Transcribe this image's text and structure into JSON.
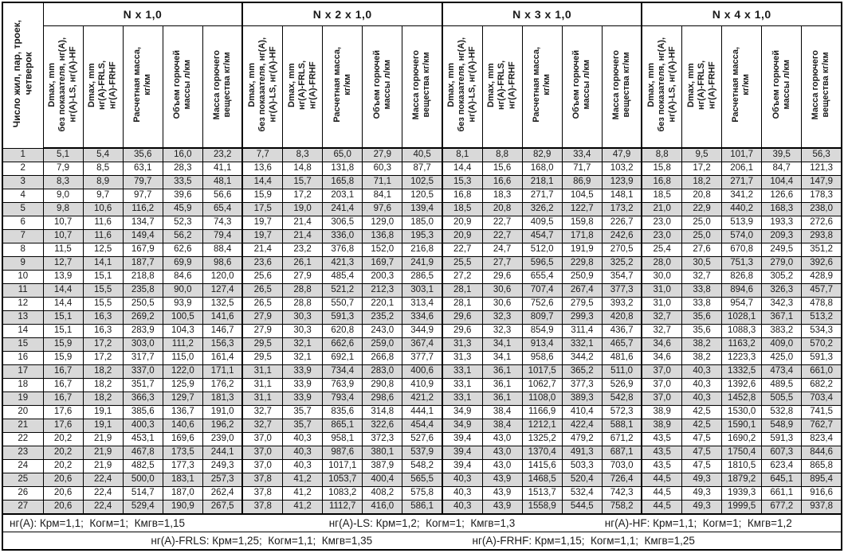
{
  "table": {
    "corner_header": "Число жил, пар, троек,\nчетверок",
    "groups": [
      {
        "label": "N x 1,0"
      },
      {
        "label": "N x 2 x 1,0"
      },
      {
        "label": "N x 3 x 1,0"
      },
      {
        "label": "N x 4 x 1,0"
      }
    ],
    "col_headers": [
      "Dmax, mm\nбез показателя, нг(А),\nнг(А)-LS, нг(А)-HF",
      "Dmax, mm\nнг(А)-FRLS,\nнг(А)-FRHF",
      "Расчетная масса,\nкг/км",
      "Объем горючей\nмассы л/км",
      "Масса горючего\nвещества кг/км"
    ],
    "rows": [
      {
        "n": "1",
        "cells": [
          "5,1",
          "5,4",
          "35,6",
          "16,0",
          "23,2",
          "7,7",
          "8,3",
          "65,0",
          "27,9",
          "40,5",
          "8,1",
          "8,8",
          "82,9",
          "33,4",
          "47,9",
          "8,8",
          "9,5",
          "101,7",
          "39,5",
          "56,3"
        ]
      },
      {
        "n": "2",
        "cells": [
          "7,9",
          "8,5",
          "63,1",
          "28,3",
          "41,1",
          "13,6",
          "14,8",
          "131,8",
          "60,3",
          "87,7",
          "14,4",
          "15,6",
          "168,0",
          "71,7",
          "103,2",
          "15,8",
          "17,2",
          "206,1",
          "84,7",
          "121,3"
        ]
      },
      {
        "n": "3",
        "cells": [
          "8,3",
          "8,9",
          "79,7",
          "33,5",
          "48,1",
          "14,4",
          "15,7",
          "165,8",
          "71,1",
          "102,5",
          "15,3",
          "16,6",
          "218,1",
          "86,9",
          "123,9",
          "16,8",
          "18,2",
          "271,7",
          "104,4",
          "147,9"
        ]
      },
      {
        "n": "4",
        "cells": [
          "9,0",
          "9,7",
          "97,7",
          "39,6",
          "56,6",
          "15,9",
          "17,2",
          "203,1",
          "84,1",
          "120,5",
          "16,8",
          "18,3",
          "271,7",
          "104,5",
          "148,1",
          "18,5",
          "20,8",
          "341,2",
          "126,6",
          "178,3"
        ]
      },
      {
        "n": "5",
        "cells": [
          "9,8",
          "10,6",
          "116,2",
          "45,9",
          "65,4",
          "17,5",
          "19,0",
          "241,4",
          "97,6",
          "139,4",
          "18,5",
          "20,8",
          "326,2",
          "122,7",
          "173,2",
          "21,0",
          "22,9",
          "440,2",
          "168,3",
          "238,0"
        ]
      },
      {
        "n": "6",
        "cells": [
          "10,7",
          "11,6",
          "134,7",
          "52,3",
          "74,3",
          "19,7",
          "21,4",
          "306,5",
          "129,0",
          "185,0",
          "20,9",
          "22,7",
          "409,5",
          "159,8",
          "226,7",
          "23,0",
          "25,0",
          "513,9",
          "193,3",
          "272,6"
        ]
      },
      {
        "n": "7",
        "cells": [
          "10,7",
          "11,6",
          "149,4",
          "56,2",
          "79,4",
          "19,7",
          "21,4",
          "336,0",
          "136,8",
          "195,3",
          "20,9",
          "22,7",
          "454,7",
          "171,8",
          "242,6",
          "23,0",
          "25,0",
          "574,0",
          "209,3",
          "293,8"
        ]
      },
      {
        "n": "8",
        "cells": [
          "11,5",
          "12,5",
          "167,9",
          "62,6",
          "88,4",
          "21,4",
          "23,2",
          "376,8",
          "152,0",
          "216,8",
          "22,7",
          "24,7",
          "512,0",
          "191,9",
          "270,5",
          "25,4",
          "27,6",
          "670,8",
          "249,5",
          "351,2"
        ]
      },
      {
        "n": "9",
        "cells": [
          "12,7",
          "14,1",
          "187,7",
          "69,9",
          "98,6",
          "23,6",
          "26,1",
          "421,3",
          "169,7",
          "241,9",
          "25,5",
          "27,7",
          "596,5",
          "229,8",
          "325,2",
          "28,0",
          "30,5",
          "751,3",
          "279,0",
          "392,6"
        ]
      },
      {
        "n": "10",
        "cells": [
          "13,9",
          "15,1",
          "218,8",
          "84,6",
          "120,0",
          "25,6",
          "27,9",
          "485,4",
          "200,3",
          "286,5",
          "27,2",
          "29,6",
          "655,4",
          "250,9",
          "354,7",
          "30,0",
          "32,7",
          "826,8",
          "305,2",
          "428,9"
        ]
      },
      {
        "n": "11",
        "cells": [
          "14,4",
          "15,5",
          "235,8",
          "90,0",
          "127,4",
          "26,5",
          "28,8",
          "521,2",
          "212,3",
          "303,1",
          "28,1",
          "30,6",
          "707,4",
          "267,4",
          "377,3",
          "31,0",
          "33,8",
          "894,6",
          "326,3",
          "457,7"
        ]
      },
      {
        "n": "12",
        "cells": [
          "14,4",
          "15,5",
          "250,5",
          "93,9",
          "132,5",
          "26,5",
          "28,8",
          "550,7",
          "220,1",
          "313,4",
          "28,1",
          "30,6",
          "752,6",
          "279,5",
          "393,2",
          "31,0",
          "33,8",
          "954,7",
          "342,3",
          "478,8"
        ]
      },
      {
        "n": "13",
        "cells": [
          "15,1",
          "16,3",
          "269,2",
          "100,5",
          "141,6",
          "27,9",
          "30,3",
          "591,3",
          "235,2",
          "334,6",
          "29,6",
          "32,3",
          "809,7",
          "299,3",
          "420,8",
          "32,7",
          "35,6",
          "1028,1",
          "367,1",
          "513,2"
        ]
      },
      {
        "n": "14",
        "cells": [
          "15,1",
          "16,3",
          "283,9",
          "104,3",
          "146,7",
          "27,9",
          "30,3",
          "620,8",
          "243,0",
          "344,9",
          "29,6",
          "32,3",
          "854,9",
          "311,4",
          "436,7",
          "32,7",
          "35,6",
          "1088,3",
          "383,2",
          "534,3"
        ]
      },
      {
        "n": "15",
        "cells": [
          "15,9",
          "17,2",
          "303,0",
          "111,2",
          "156,3",
          "29,5",
          "32,1",
          "662,6",
          "259,0",
          "367,4",
          "31,3",
          "34,1",
          "913,4",
          "332,1",
          "465,7",
          "34,6",
          "38,2",
          "1163,2",
          "409,0",
          "570,2"
        ]
      },
      {
        "n": "16",
        "cells": [
          "15,9",
          "17,2",
          "317,7",
          "115,0",
          "161,4",
          "29,5",
          "32,1",
          "692,1",
          "266,8",
          "377,7",
          "31,3",
          "34,1",
          "958,6",
          "344,2",
          "481,6",
          "34,6",
          "38,2",
          "1223,3",
          "425,0",
          "591,3"
        ]
      },
      {
        "n": "17",
        "cells": [
          "16,7",
          "18,2",
          "337,0",
          "122,0",
          "171,1",
          "31,1",
          "33,9",
          "734,4",
          "283,0",
          "400,6",
          "33,1",
          "36,1",
          "1017,5",
          "365,2",
          "511,0",
          "37,0",
          "40,3",
          "1332,5",
          "473,4",
          "661,0"
        ]
      },
      {
        "n": "18",
        "cells": [
          "16,7",
          "18,2",
          "351,7",
          "125,9",
          "176,2",
          "31,1",
          "33,9",
          "763,9",
          "290,8",
          "410,9",
          "33,1",
          "36,1",
          "1062,7",
          "377,3",
          "526,9",
          "37,0",
          "40,3",
          "1392,6",
          "489,5",
          "682,2"
        ]
      },
      {
        "n": "19",
        "cells": [
          "16,7",
          "18,2",
          "366,3",
          "129,7",
          "181,3",
          "31,1",
          "33,9",
          "793,4",
          "298,6",
          "421,2",
          "33,1",
          "36,1",
          "1108,0",
          "389,3",
          "542,8",
          "37,0",
          "40,3",
          "1452,8",
          "505,5",
          "703,4"
        ]
      },
      {
        "n": "20",
        "cells": [
          "17,6",
          "19,1",
          "385,6",
          "136,7",
          "191,0",
          "32,7",
          "35,7",
          "835,6",
          "314,8",
          "444,1",
          "34,9",
          "38,4",
          "1166,9",
          "410,4",
          "572,3",
          "38,9",
          "42,5",
          "1530,0",
          "532,8",
          "741,5"
        ]
      },
      {
        "n": "21",
        "cells": [
          "17,6",
          "19,1",
          "400,3",
          "140,6",
          "196,2",
          "32,7",
          "35,7",
          "865,1",
          "322,6",
          "454,4",
          "34,9",
          "38,4",
          "1212,1",
          "422,4",
          "588,1",
          "38,9",
          "42,5",
          "1590,1",
          "548,9",
          "762,7"
        ]
      },
      {
        "n": "22",
        "cells": [
          "20,2",
          "21,9",
          "453,1",
          "169,6",
          "239,0",
          "37,0",
          "40,3",
          "958,1",
          "372,3",
          "527,6",
          "39,4",
          "43,0",
          "1325,2",
          "479,2",
          "671,2",
          "43,5",
          "47,5",
          "1690,2",
          "591,3",
          "823,4"
        ]
      },
      {
        "n": "23",
        "cells": [
          "20,2",
          "21,9",
          "467,8",
          "173,5",
          "244,1",
          "37,0",
          "40,3",
          "987,6",
          "380,1",
          "537,9",
          "39,4",
          "43,0",
          "1370,4",
          "491,3",
          "687,1",
          "43,5",
          "47,5",
          "1750,4",
          "607,3",
          "844,6"
        ]
      },
      {
        "n": "24",
        "cells": [
          "20,2",
          "21,9",
          "482,5",
          "177,3",
          "249,3",
          "37,0",
          "40,3",
          "1017,1",
          "387,9",
          "548,2",
          "39,4",
          "43,0",
          "1415,6",
          "503,3",
          "703,0",
          "43,5",
          "47,5",
          "1810,5",
          "623,4",
          "865,8"
        ]
      },
      {
        "n": "25",
        "cells": [
          "20,6",
          "22,4",
          "500,0",
          "183,1",
          "257,3",
          "37,8",
          "41,2",
          "1053,7",
          "400,4",
          "565,5",
          "40,3",
          "43,9",
          "1468,5",
          "520,4",
          "726,4",
          "44,5",
          "49,3",
          "1879,2",
          "645,1",
          "895,4"
        ]
      },
      {
        "n": "26",
        "cells": [
          "20,6",
          "22,4",
          "514,7",
          "187,0",
          "262,4",
          "37,8",
          "41,2",
          "1083,2",
          "408,2",
          "575,8",
          "40,3",
          "43,9",
          "1513,7",
          "532,4",
          "742,3",
          "44,5",
          "49,3",
          "1939,3",
          "661,1",
          "916,6"
        ]
      },
      {
        "n": "27",
        "cells": [
          "20,6",
          "22,4",
          "529,4",
          "190,9",
          "267,5",
          "37,8",
          "41,2",
          "1112,7",
          "416,0",
          "586,1",
          "40,3",
          "43,9",
          "1558,9",
          "544,5",
          "758,2",
          "44,5",
          "49,3",
          "1999,5",
          "677,2",
          "937,8"
        ]
      }
    ]
  },
  "footer": {
    "line1": [
      "нг(А): Крм=1,1;  Когм=1;  Кмгв=1,15",
      "нг(А)-LS: Крм=1,2;  Когм=1;  Кмгв=1,3",
      "нг(А)-HF: Крм=1,1;  Когм=1;  Кмгв=1,2"
    ],
    "line2": [
      "нг(А)-FRLS: Крм=1,25;  Когм=1,1;  Кмгв=1,35",
      "нг(А)-FRHF: Крм=1,15;  Когм=1,1;  Кмгв=1,25"
    ]
  },
  "colors": {
    "stripe": "#d9d9d9",
    "border": "#000000",
    "background": "#ffffff"
  }
}
